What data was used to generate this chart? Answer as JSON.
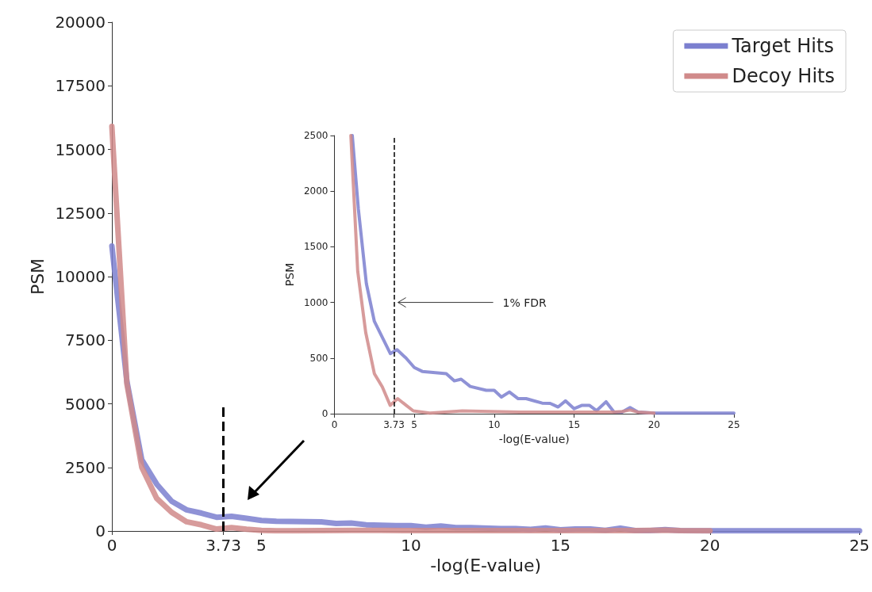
{
  "chart_data": [
    {
      "type": "line",
      "xlabel": "-log(E-value)",
      "ylabel": "PSM",
      "xlim": [
        0,
        25
      ],
      "xticks": [
        0,
        3.73,
        5,
        10,
        15,
        20,
        25
      ],
      "ylim": [
        0,
        20000
      ],
      "yticks": [
        0,
        2500,
        5000,
        7500,
        10000,
        12500,
        15000,
        17500,
        20000
      ],
      "legend": "top right",
      "grid": false,
      "marker": "none",
      "line_style": "solid",
      "ref_lines": [
        {
          "axis": "x",
          "value": 3.73,
          "line_style": "dashed",
          "color": "#000000"
        }
      ],
      "series": [
        {
          "name": "Target Hits",
          "color": "#7b7fcf",
          "x": [
            0,
            0.5,
            1,
            1.5,
            2,
            2.5,
            3,
            3.5,
            4,
            4.5,
            5,
            5.5,
            6,
            7,
            7.5,
            8,
            8.5,
            9.5,
            10,
            10.5,
            11,
            11.5,
            12,
            13,
            13.5,
            14,
            14.5,
            15,
            15.5,
            16,
            16.5,
            17,
            17.5,
            18,
            18.5,
            19,
            20,
            25
          ],
          "values": [
            11200,
            5900,
            2800,
            1840,
            1170,
            830,
            700,
            540,
            575,
            500,
            415,
            380,
            370,
            360,
            295,
            310,
            245,
            210,
            210,
            150,
            195,
            135,
            135,
            95,
            93,
            60,
            115,
            45,
            75,
            75,
            27,
            107,
            14,
            14,
            55,
            14,
            5,
            5
          ]
        },
        {
          "name": "Decoy Hits",
          "color": "#d08a8a",
          "x": [
            0,
            0.5,
            1,
            1.5,
            2,
            2.5,
            3,
            3.5,
            4,
            4.5,
            5,
            5.5,
            6,
            7,
            8,
            9,
            10,
            11,
            12,
            13,
            14,
            15,
            16,
            17,
            17.5,
            18,
            18.5,
            19,
            20
          ],
          "values": [
            15900,
            5800,
            2500,
            1280,
            730,
            360,
            240,
            75,
            135,
            70,
            25,
            10,
            5,
            15,
            25,
            22,
            18,
            16,
            15,
            14,
            14,
            14,
            14,
            14,
            14,
            20,
            33,
            14,
            5
          ]
        }
      ]
    },
    {
      "type": "line",
      "xlabel": "-log(E-value)",
      "ylabel": "PSM",
      "xlim": [
        0,
        25
      ],
      "xticks": [
        0,
        3.73,
        5,
        10,
        15,
        20,
        25
      ],
      "ylim": [
        0,
        2500
      ],
      "yticks": [
        0,
        500,
        1000,
        1500,
        2000,
        2500
      ],
      "legend": false,
      "grid": false,
      "marker": "none",
      "line_style": "solid",
      "ref_lines": [
        {
          "axis": "x",
          "value": 3.73,
          "line_style": "dashed",
          "color": "#000000"
        }
      ],
      "annotations": [
        {
          "text": "1% FDR",
          "x": 3.73,
          "y": 1000
        }
      ],
      "series": [
        {
          "color": "#7b7fcf",
          "x": [
            1.12,
            1.5,
            2,
            2.5,
            3.5,
            3.92,
            4.48,
            5,
            5.5,
            7,
            7.5,
            7.93,
            8.5,
            9.5,
            10,
            10.45,
            10.95,
            11.5,
            12,
            13,
            13.5,
            14,
            14.46,
            15,
            15.5,
            15.95,
            16.4,
            17,
            17.5,
            18,
            18.5,
            19,
            20,
            25
          ],
          "values": [
            2500,
            1840,
            1170,
            830,
            540,
            575,
            500,
            415,
            380,
            360,
            295,
            310,
            245,
            210,
            210,
            150,
            195,
            135,
            135,
            95,
            93,
            60,
            115,
            45,
            75,
            75,
            27,
            107,
            14,
            14,
            55,
            14,
            5,
            5
          ]
        },
        {
          "color": "#d08a8a",
          "x": [
            1.03,
            1.46,
            1.96,
            2.5,
            3,
            3.49,
            3.96,
            4.94,
            5.97,
            8,
            11.6,
            15.3,
            17.5,
            18,
            18.5,
            19,
            20
          ],
          "values": [
            2500,
            1280,
            730,
            360,
            240,
            75,
            135,
            25,
            5,
            25,
            14,
            14,
            14,
            20,
            33,
            14,
            5
          ]
        }
      ]
    }
  ]
}
